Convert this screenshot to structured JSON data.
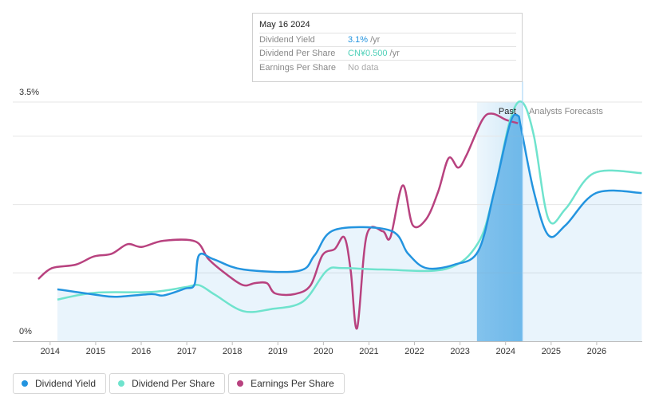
{
  "chart_data": {
    "type": "line",
    "xlim": [
      2013.18,
      2027.0
    ],
    "xticks": [
      2014,
      2015,
      2016,
      2017,
      2018,
      2019,
      2020,
      2021,
      2022,
      2023,
      2024,
      2025,
      2026
    ],
    "ylim": [
      0,
      3.5
    ],
    "yticks": [
      {
        "value": 0,
        "label": "0%"
      },
      {
        "value": 3.5,
        "label": "3.5%"
      }
    ],
    "ygrid": [
      1,
      2,
      3
    ],
    "grid": true,
    "annotations": {
      "past": "Past",
      "forecast": "Analysts Forecasts"
    },
    "series": [
      {
        "name": "Dividend Yield",
        "color": "#2394df",
        "area": true,
        "x": [
          2014.16,
          2015.0,
          2015.44,
          2016.22,
          2016.49,
          2016.96,
          2017.17,
          2017.27,
          2017.59,
          2018.24,
          2019.46,
          2019.81,
          2020.25,
          2021.47,
          2021.86,
          2022.26,
          2022.87,
          2023.4,
          2023.75,
          2024.1,
          2024.27,
          2024.34,
          2024.62,
          2024.94,
          2025.32,
          2025.99,
          2026.99
        ],
        "values": [
          0.76,
          0.68,
          0.65,
          0.69,
          0.67,
          0.77,
          0.83,
          1.26,
          1.2,
          1.05,
          1.03,
          1.26,
          1.63,
          1.62,
          1.28,
          1.07,
          1.12,
          1.32,
          2.19,
          3.19,
          3.3,
          3.12,
          2.19,
          1.55,
          1.7,
          2.17,
          2.17
        ]
      },
      {
        "name": "Dividend Per Share",
        "color": "#6fe3cd",
        "x": [
          2014.16,
          2015.0,
          2016.22,
          2016.96,
          2017.27,
          2017.62,
          2018.24,
          2018.85,
          2019.55,
          2020.07,
          2020.42,
          2021.3,
          2022.7,
          2023.4,
          2023.75,
          2024.1,
          2024.36,
          2024.62,
          2024.94,
          2025.32,
          2025.94,
          2026.99
        ],
        "values": [
          0.61,
          0.71,
          0.72,
          0.79,
          0.82,
          0.68,
          0.44,
          0.47,
          0.58,
          1.03,
          1.07,
          1.05,
          1.06,
          1.44,
          2.19,
          3.24,
          3.5,
          3.01,
          1.79,
          1.94,
          2.46,
          2.46
        ]
      },
      {
        "name": "Earnings Per Share",
        "color": "#b8427f",
        "x": [
          2013.74,
          2014.04,
          2014.56,
          2014.96,
          2015.35,
          2015.7,
          2016.01,
          2016.49,
          2017.19,
          2017.48,
          2017.89,
          2018.24,
          2018.5,
          2018.76,
          2018.94,
          2019.37,
          2019.72,
          2019.98,
          2020.25,
          2020.46,
          2020.6,
          2020.74,
          2020.95,
          2021.3,
          2021.47,
          2021.74,
          2021.96,
          2022.26,
          2022.52,
          2022.75,
          2022.96,
          2023.14,
          2023.49,
          2023.71,
          2024.01,
          2024.27
        ],
        "values": [
          0.91,
          1.07,
          1.12,
          1.24,
          1.28,
          1.42,
          1.38,
          1.47,
          1.46,
          1.2,
          0.97,
          0.82,
          0.85,
          0.85,
          0.7,
          0.69,
          0.82,
          1.26,
          1.35,
          1.52,
          1.03,
          0.19,
          1.55,
          1.61,
          1.52,
          2.28,
          1.7,
          1.79,
          2.19,
          2.68,
          2.54,
          2.72,
          3.24,
          3.33,
          3.24,
          3.19
        ]
      }
    ]
  },
  "tooltip": {
    "date": "May 16 2024",
    "rows": [
      {
        "value": "3.1%",
        "unit": "/yr"
      },
      {
        "value": "CN¥0.500",
        "unit": "/yr"
      },
      {
        "value": "No data"
      }
    ]
  }
}
